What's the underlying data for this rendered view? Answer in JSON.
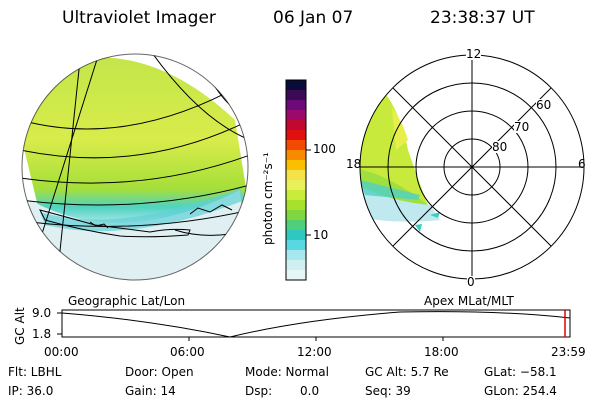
{
  "header": {
    "instrument": "Ultraviolet Imager",
    "date": "06 Jan 07",
    "time": "23:38:37 UT"
  },
  "colorbar": {
    "unit_label": "photon cm⁻²s⁻¹",
    "ticks": [
      "100",
      "10"
    ],
    "colors": [
      "#0b0b3a",
      "#3a0a55",
      "#6d0a7a",
      "#9b0a6b",
      "#c00830",
      "#e01010",
      "#f24a00",
      "#f88a00",
      "#fbbf00",
      "#f5e24a",
      "#e9f05a",
      "#c8ec3a",
      "#a7e12e",
      "#7fd63e",
      "#4fcf7a",
      "#2ec7c2",
      "#59d8e2",
      "#a6e8ee",
      "#cfeff0",
      "#e6f5f5"
    ]
  },
  "left_panel": {
    "caption": "Geographic Lat/Lon"
  },
  "right_panel": {
    "caption": "Apex MLat/MLT",
    "mlt_labels": {
      "top": "12",
      "left": "18",
      "right": "6",
      "bottom": "0"
    },
    "lat_labels": [
      "60",
      "70",
      "80"
    ]
  },
  "altitude_plot": {
    "ylabel": "GC Alt",
    "yticks": [
      "9.0",
      "1.8"
    ],
    "xticks": [
      "00:00",
      "06:00",
      "12:00",
      "18:00",
      "23:59"
    ],
    "marker_color": "#e00000"
  },
  "footer": {
    "filter": "Flt: LBHL",
    "door": "Door: Open",
    "mode": "Mode: Normal",
    "gc_alt": "GC Alt: 5.7 Re",
    "glat": "GLat: −58.1",
    "ip": "IP: 36.0",
    "gain": "Gain: 14",
    "dsp_label": "Dsp:",
    "dsp_value": "0.0",
    "seq": "Seq: 39",
    "glon": "GLon: 254.4"
  }
}
